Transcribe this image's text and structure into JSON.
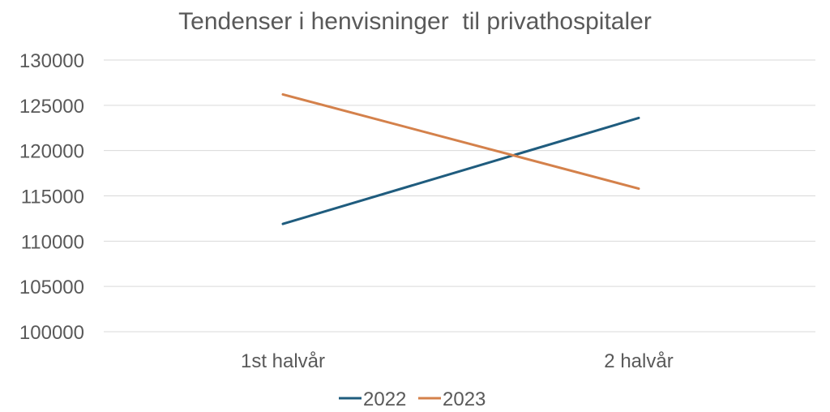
{
  "chart_data": {
    "type": "line",
    "title": "Tendenser i henvisninger  til privathospitaler",
    "xlabel": "",
    "ylabel": "",
    "categories": [
      "1st halvår",
      "2 halvår"
    ],
    "series": [
      {
        "name": "2022",
        "values": [
          111900,
          123600
        ],
        "color": "#1f5c7e"
      },
      {
        "name": "2023",
        "values": [
          126200,
          115800
        ],
        "color": "#d4814b"
      }
    ],
    "ylim": [
      100000,
      130000
    ],
    "yticks": [
      "100000",
      "105000",
      "110000",
      "115000",
      "120000",
      "125000",
      "130000"
    ],
    "grid": true,
    "legend": "bottom"
  }
}
